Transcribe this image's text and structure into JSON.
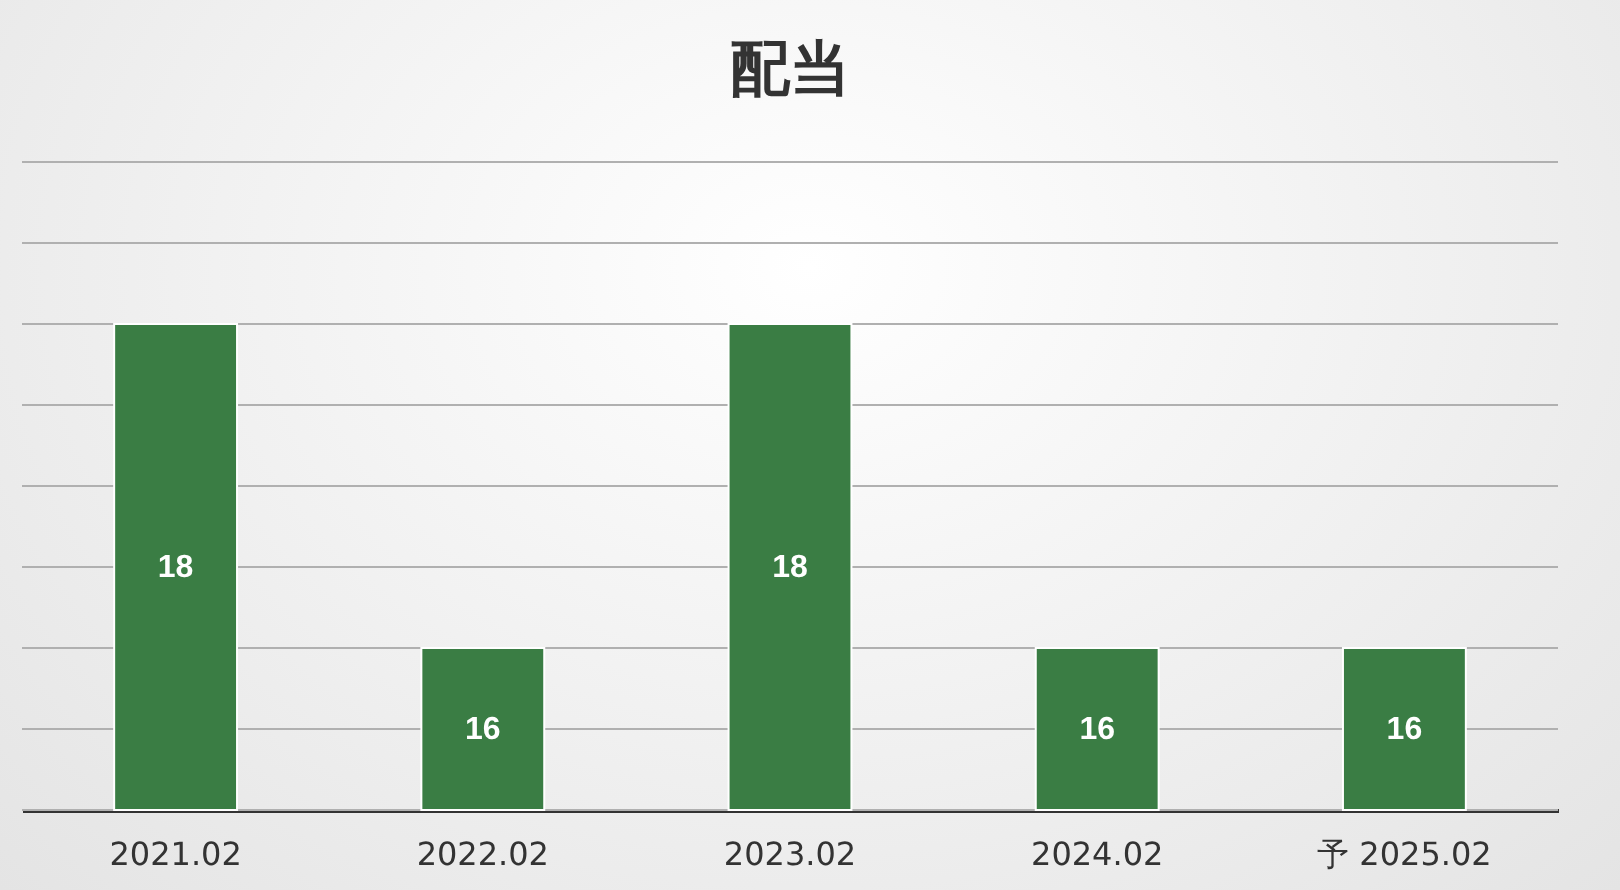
{
  "chart_data": {
    "type": "bar",
    "title": "配当",
    "categories": [
      "2021.02",
      "2022.02",
      "2023.02",
      "2024.02",
      "予 2025.02"
    ],
    "values": [
      18,
      16,
      18,
      16,
      16
    ],
    "color": "#3a7d44",
    "ylim": [
      15,
      19
    ],
    "yticks": [
      {
        "value": 15,
        "label": null
      },
      {
        "value": 15.5,
        "label": null
      },
      {
        "value": 16,
        "label": null
      },
      {
        "value": 16.5,
        "label": null
      },
      {
        "value": 17,
        "label": null
      },
      {
        "value": 17.5,
        "label": null
      },
      {
        "value": 18,
        "label": null
      },
      {
        "value": 18.5,
        "label": null
      },
      {
        "value": 19,
        "label": null
      }
    ],
    "grid": "y",
    "tick_labels": "x",
    "data_labels": true
  }
}
